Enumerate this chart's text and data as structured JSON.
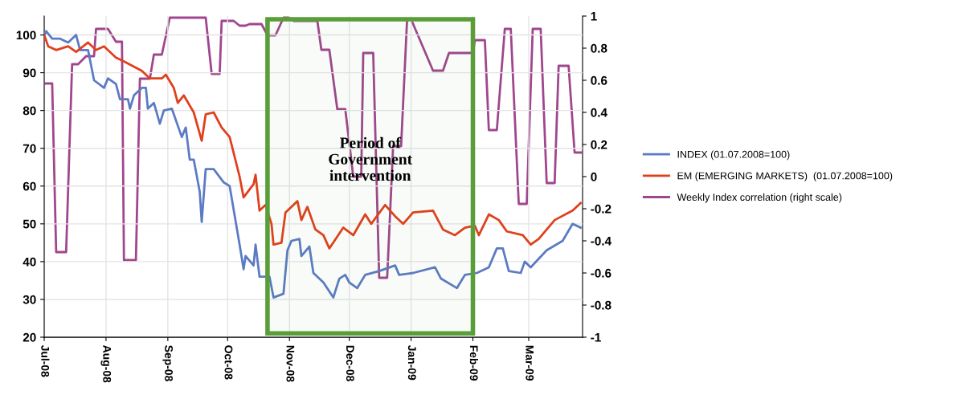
{
  "chart_data": {
    "type": "line",
    "xlim": [
      "2008-07-01",
      "2009-03-28"
    ],
    "xticks": [
      {
        "value": "2008-07-01",
        "label": "Jul-08"
      },
      {
        "value": "2008-08-01",
        "label": "Aug-08"
      },
      {
        "value": "2008-09-01",
        "label": "Sep-08"
      },
      {
        "value": "2008-10-01",
        "label": "Oct-08"
      },
      {
        "value": "2008-11-01",
        "label": "Nov-08"
      },
      {
        "value": "2008-12-01",
        "label": "Dec-08"
      },
      {
        "value": "2009-01-01",
        "label": "Jan-09"
      },
      {
        "value": "2009-02-01",
        "label": "Feb-09"
      },
      {
        "value": "2009-03-01",
        "label": "Mar-09"
      }
    ],
    "ylim": [
      20,
      105
    ],
    "yticks": [
      20,
      30,
      40,
      50,
      60,
      70,
      80,
      90,
      100
    ],
    "y2lim": [
      -1,
      1
    ],
    "y2ticks": [
      -1,
      -0.8,
      -0.6,
      -0.4,
      -0.2,
      0,
      0.2,
      0.4,
      0.6,
      0.8,
      1
    ],
    "grid": true,
    "legend": "right",
    "marker": "none",
    "line_style": "solid",
    "bands": [
      {
        "axis": "x",
        "from": "2008-10-21",
        "to": "2009-02-01",
        "label": "Period of\nGovernment\nintervention",
        "color": "#5a9e3a"
      }
    ],
    "series": [
      {
        "name": "INDEX (01.07.2008=100)",
        "color": "#5b7bc4",
        "x": [
          "2008-07-01",
          "2008-07-02",
          "2008-07-05",
          "2008-07-09",
          "2008-07-13",
          "2008-07-17",
          "2008-07-19",
          "2008-07-23",
          "2008-07-26",
          "2008-07-31",
          "2008-08-02",
          "2008-08-06",
          "2008-08-08",
          "2008-08-12",
          "2008-08-13",
          "2008-08-15",
          "2008-08-19",
          "2008-08-21",
          "2008-08-22",
          "2008-08-25",
          "2008-08-28",
          "2008-08-30",
          "2008-09-03",
          "2008-09-08",
          "2008-09-10",
          "2008-09-12",
          "2008-09-14",
          "2008-09-17",
          "2008-09-18",
          "2008-09-20",
          "2008-09-24",
          "2008-09-29",
          "2008-10-02",
          "2008-10-07",
          "2008-10-09",
          "2008-10-10",
          "2008-10-14",
          "2008-10-15",
          "2008-10-17",
          "2008-10-22",
          "2008-10-24",
          "2008-10-29",
          "2008-10-31",
          "2008-11-02",
          "2008-11-06",
          "2008-11-07",
          "2008-11-11",
          "2008-11-13",
          "2008-11-18",
          "2008-11-23",
          "2008-11-26",
          "2008-11-29",
          "2008-12-01",
          "2008-12-05",
          "2008-12-09",
          "2008-12-16",
          "2008-12-24",
          "2008-12-26",
          "2009-01-02",
          "2009-01-13",
          "2009-01-16",
          "2009-01-24",
          "2009-01-28",
          "2009-02-03",
          "2009-02-09",
          "2009-02-13",
          "2009-02-16",
          "2009-02-19",
          "2009-02-25",
          "2009-02-27",
          "2009-03-02",
          "2009-03-10",
          "2009-03-18",
          "2009-03-23",
          "2009-03-27"
        ],
        "values": [
          100,
          101,
          99,
          99,
          98,
          100,
          96,
          96,
          88,
          86,
          88.5,
          87,
          83,
          83,
          80.5,
          84,
          86,
          86,
          80.5,
          82,
          76.5,
          80,
          80.5,
          73,
          75.5,
          67,
          67,
          58.5,
          50.5,
          64.5,
          64.5,
          61,
          60,
          44.5,
          38,
          41.5,
          39,
          44.5,
          36,
          36,
          30.5,
          31.5,
          43,
          45.5,
          46,
          41.5,
          44,
          37,
          34.5,
          30.5,
          35.5,
          36.5,
          34.5,
          33,
          36.5,
          37.5,
          39,
          36.5,
          37,
          38.5,
          35.5,
          33,
          36.5,
          37,
          38.5,
          43.5,
          43.5,
          37.5,
          37,
          40,
          38.5,
          43,
          45.5,
          50,
          49
        ]
      },
      {
        "name": "EM (EMERGING MARKETS)  (01.07.2008=100)",
        "color": "#e0401c",
        "x": [
          "2008-07-01",
          "2008-07-03",
          "2008-07-07",
          "2008-07-13",
          "2008-07-17",
          "2008-07-23",
          "2008-07-27",
          "2008-07-31",
          "2008-08-06",
          "2008-08-10",
          "2008-08-19",
          "2008-08-23",
          "2008-08-29",
          "2008-08-31",
          "2008-09-04",
          "2008-09-06",
          "2008-09-09",
          "2008-09-14",
          "2008-09-18",
          "2008-09-20",
          "2008-09-24",
          "2008-09-28",
          "2008-10-02",
          "2008-10-07",
          "2008-10-09",
          "2008-10-14",
          "2008-10-15",
          "2008-10-17",
          "2008-10-20",
          "2008-10-23",
          "2008-10-24",
          "2008-10-28",
          "2008-10-30",
          "2008-11-05",
          "2008-11-07",
          "2008-11-10",
          "2008-11-14",
          "2008-11-18",
          "2008-11-21",
          "2008-11-28",
          "2008-12-03",
          "2008-12-09",
          "2008-12-12",
          "2008-12-19",
          "2008-12-24",
          "2008-12-28",
          "2009-01-02",
          "2009-01-12",
          "2009-01-17",
          "2009-01-23",
          "2009-01-28",
          "2009-02-02",
          "2009-02-04",
          "2009-02-09",
          "2009-02-14",
          "2009-02-18",
          "2009-02-26",
          "2009-03-02",
          "2009-03-06",
          "2009-03-14",
          "2009-03-23",
          "2009-03-27"
        ],
        "values": [
          100,
          97,
          96,
          97,
          95.5,
          98,
          96,
          97,
          94,
          93,
          90.5,
          88.5,
          88.5,
          89.5,
          86,
          82,
          84,
          79.5,
          72,
          79,
          79.5,
          75.5,
          73,
          62.5,
          57,
          60.5,
          63,
          53.5,
          55,
          50,
          44.5,
          45,
          53,
          56,
          51,
          54.5,
          48.5,
          47,
          43.5,
          49,
          47,
          52.5,
          50,
          55,
          52,
          50,
          53,
          53.5,
          48.5,
          47,
          49,
          49.5,
          47,
          52.5,
          51,
          48,
          47,
          44.5,
          46,
          51,
          53.5,
          55.5
        ]
      },
      {
        "name": "Weekly Index correlation (right scale)",
        "color": "#a0468e",
        "axis": "y2",
        "x": [
          "2008-07-01",
          "2008-07-05",
          "2008-07-07",
          "2008-07-12",
          "2008-07-15",
          "2008-07-18",
          "2008-07-22",
          "2008-07-26",
          "2008-07-27",
          "2008-08-02",
          "2008-08-06",
          "2008-08-09",
          "2008-08-10",
          "2008-08-16",
          "2008-08-18",
          "2008-08-23",
          "2008-08-25",
          "2008-08-29",
          "2008-09-02",
          "2008-09-20",
          "2008-09-23",
          "2008-09-27",
          "2008-09-28",
          "2008-10-04",
          "2008-10-07",
          "2008-10-10",
          "2008-10-12",
          "2008-10-18",
          "2008-10-21",
          "2008-10-25",
          "2008-10-29",
          "2008-11-01",
          "2008-11-03",
          "2008-11-15",
          "2008-11-17",
          "2008-11-21",
          "2008-11-25",
          "2008-11-29",
          "2008-12-03",
          "2008-12-07",
          "2008-12-08",
          "2008-12-13",
          "2008-12-16",
          "2008-12-20",
          "2008-12-23",
          "2008-12-27",
          "2008-12-30",
          "2009-01-01",
          "2009-01-12",
          "2009-01-17",
          "2009-01-20",
          "2009-02-01",
          "2009-02-02",
          "2009-02-07",
          "2009-02-09",
          "2009-02-13",
          "2009-02-17",
          "2009-02-20",
          "2009-02-24",
          "2009-02-28",
          "2009-03-03",
          "2009-03-07",
          "2009-03-10",
          "2009-03-14",
          "2009-03-16",
          "2009-03-21",
          "2009-03-24",
          "2009-03-28"
        ],
        "values": [
          0.58,
          0.58,
          -0.47,
          -0.47,
          0.7,
          0.7,
          0.75,
          0.75,
          0.92,
          0.92,
          0.84,
          0.84,
          -0.52,
          -0.52,
          0.61,
          0.61,
          0.76,
          0.76,
          0.99,
          0.99,
          0.64,
          0.64,
          0.97,
          0.97,
          0.94,
          0.94,
          0.95,
          0.95,
          0.88,
          0.88,
          0.99,
          0.99,
          0.97,
          0.97,
          0.79,
          0.79,
          0.42,
          0.42,
          0,
          0,
          0.77,
          0.77,
          -0.63,
          -0.63,
          0.19,
          0.19,
          0.98,
          0.98,
          0.66,
          0.66,
          0.77,
          0.77,
          0.85,
          0.85,
          0.29,
          0.29,
          0.92,
          0.92,
          -0.17,
          -0.17,
          0.92,
          0.92,
          -0.04,
          -0.04,
          0.69,
          0.69,
          0.15,
          0.15
        ]
      }
    ]
  }
}
